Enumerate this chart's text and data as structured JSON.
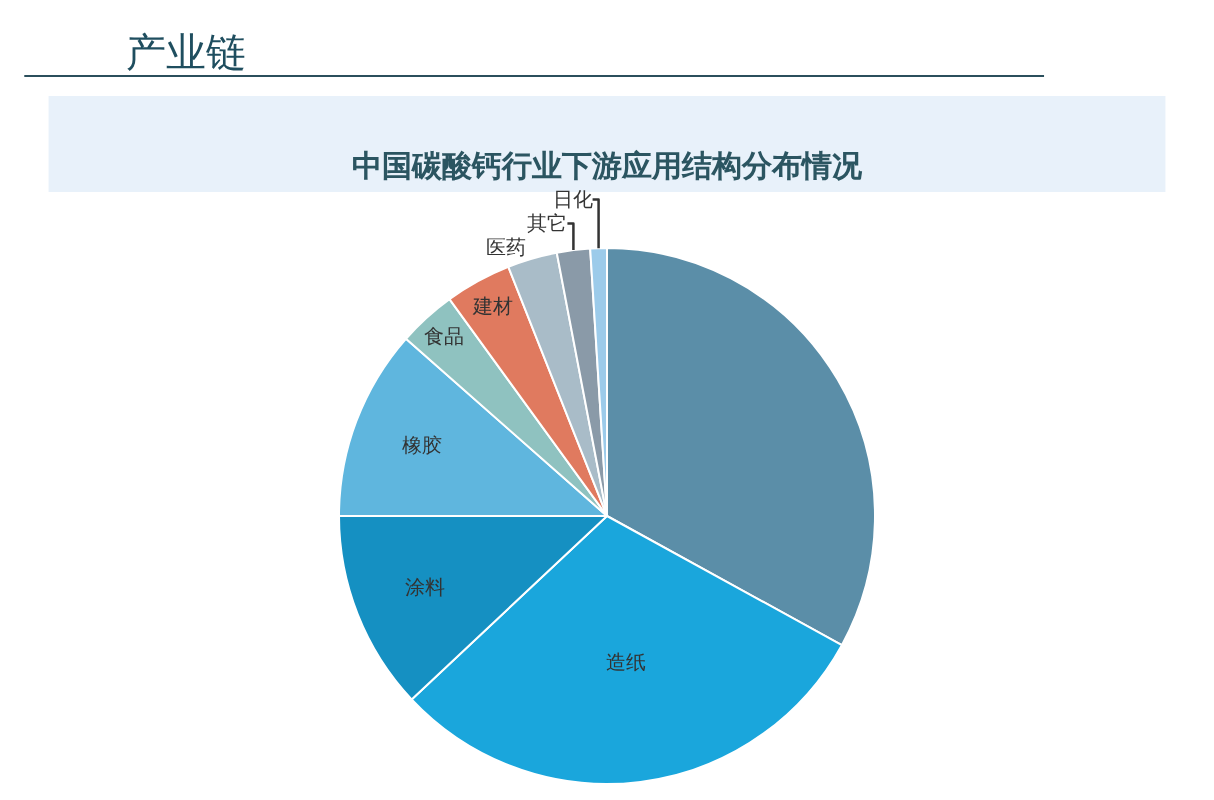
{
  "chart_data": {
    "type": "pie",
    "title": "中国碳酸钙行业下游应用结构分布情况",
    "annotations": [
      "产业链"
    ],
    "categories": [
      null,
      "造纸",
      "涂料",
      "橡胶",
      "食品",
      "建材",
      "医药",
      "其它",
      "日化"
    ],
    "values": [
      33,
      30,
      12,
      11.5,
      3.5,
      4,
      3,
      2,
      1
    ],
    "colors": [
      "#5b8ea8",
      "#1aa6dc",
      "#1590c2",
      "#5fb6de",
      "#8fc2c0",
      "#e07a5f",
      "#a9bcc8",
      "#8a9aa8",
      "#9ccbea"
    ],
    "legend": false
  }
}
